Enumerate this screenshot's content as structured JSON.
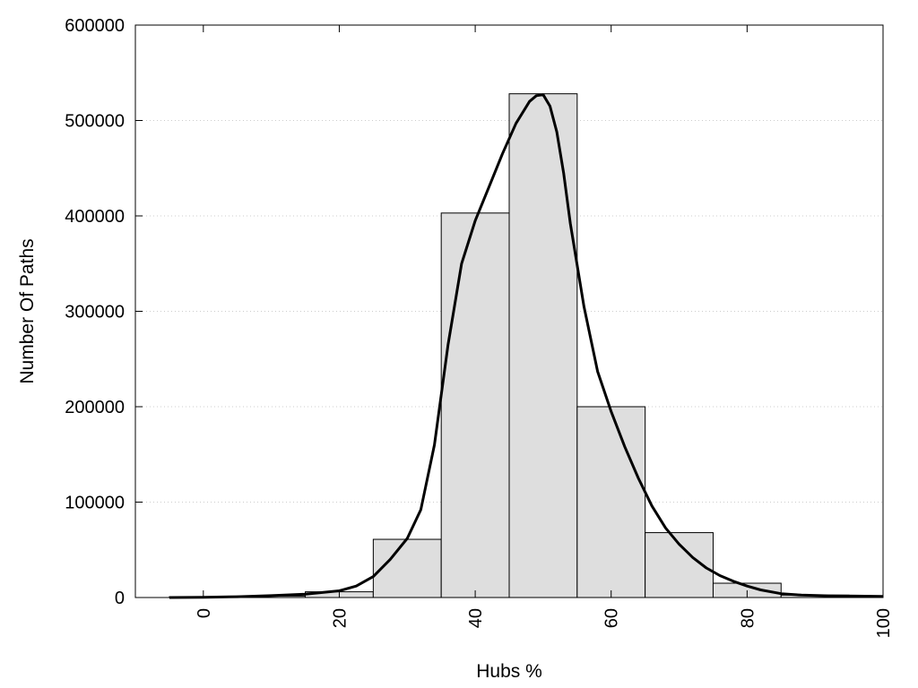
{
  "chart_data": {
    "type": "bar",
    "title": "",
    "xlabel": "Hubs %",
    "ylabel": "Number Of Paths",
    "xlim": [
      -10,
      100
    ],
    "ylim": [
      0,
      600000
    ],
    "x_ticks": [
      0,
      20,
      40,
      60,
      80,
      100
    ],
    "y_ticks": [
      0,
      100000,
      200000,
      300000,
      400000,
      500000,
      600000
    ],
    "grid": "horizontal dotted",
    "bin_width": 10,
    "bars": [
      {
        "center": 0,
        "value": 800
      },
      {
        "center": 10,
        "value": 1500
      },
      {
        "center": 20,
        "value": 6000
      },
      {
        "center": 30,
        "value": 61000
      },
      {
        "center": 40,
        "value": 403000
      },
      {
        "center": 50,
        "value": 528000
      },
      {
        "center": 60,
        "value": 200000
      },
      {
        "center": 70,
        "value": 68000
      },
      {
        "center": 80,
        "value": 15000
      },
      {
        "center": 90,
        "value": 2500
      },
      {
        "center": 100,
        "value": 1500
      }
    ],
    "curve": {
      "x": [
        -5,
        0,
        5,
        10,
        15,
        20,
        22.5,
        25,
        27.5,
        30,
        32,
        34,
        36,
        38,
        40,
        42,
        44,
        46,
        48,
        49,
        50,
        51,
        52,
        53,
        54,
        56,
        58,
        60,
        62,
        64,
        66,
        68,
        70,
        72,
        74,
        76,
        78,
        80,
        82,
        85,
        88,
        92,
        96,
        100
      ],
      "y": [
        0,
        200,
        800,
        2000,
        3500,
        7000,
        12000,
        22000,
        40000,
        62000,
        92000,
        160000,
        265000,
        350000,
        395000,
        430000,
        465000,
        497000,
        520000,
        526000,
        527000,
        515000,
        488000,
        445000,
        392000,
        305000,
        237000,
        195000,
        158000,
        125000,
        96000,
        73000,
        56000,
        42000,
        31000,
        23000,
        17000,
        12000,
        8000,
        4000,
        2500,
        1800,
        1500,
        1200
      ]
    },
    "colors": {
      "bar_fill": "#dedede",
      "bar_stroke": "#000000",
      "curve": "#000000",
      "grid": "#cccccc"
    }
  }
}
